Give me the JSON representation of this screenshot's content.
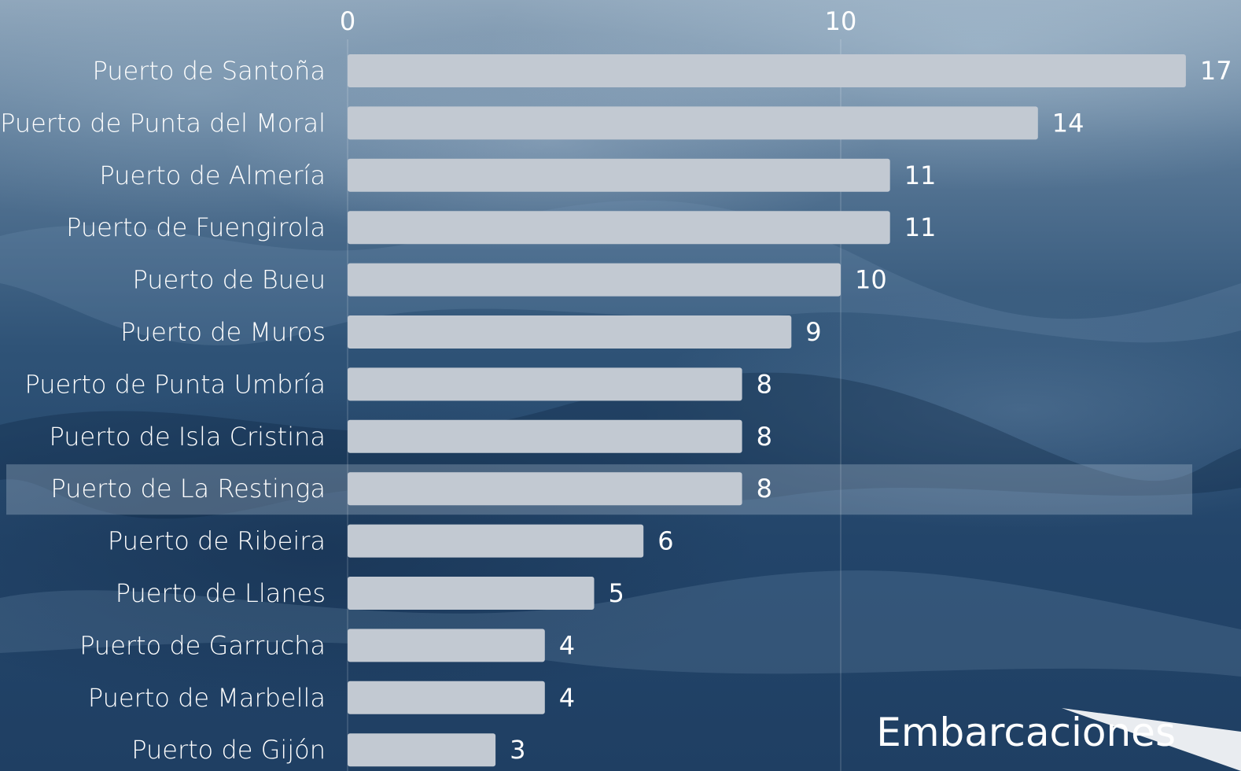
{
  "chart_data": {
    "type": "bar",
    "orientation": "horizontal",
    "categories": [
      "Puerto de Santoña",
      "Puerto de Punta del Moral",
      "Puerto de Almería",
      "Puerto de Fuengirola",
      "Puerto de Bueu",
      "Puerto de Muros",
      "Puerto de Punta Umbría",
      "Puerto de Isla Cristina",
      "Puerto de La Restinga",
      "Puerto de Ribeira",
      "Puerto de Llanes",
      "Puerto de Garrucha",
      "Puerto de Marbella",
      "Puerto de Gijón"
    ],
    "values": [
      17,
      14,
      11,
      11,
      10,
      9,
      8,
      8,
      8,
      6,
      5,
      4,
      4,
      3
    ],
    "x_ticks": [
      0,
      10
    ],
    "xlim": [
      0,
      17
    ],
    "highlighted_category": "Puerto de La Restinga",
    "unit_label": "Embarcaciones",
    "bar_color": "#c2c9d2",
    "background": "ocean photo"
  }
}
